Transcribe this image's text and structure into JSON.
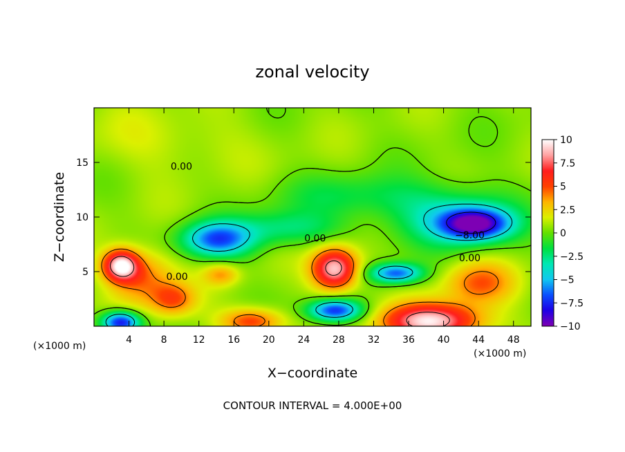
{
  "chart_data": {
    "type": "heatmap",
    "title": "zonal velocity",
    "xlabel": "X−coordinate",
    "ylabel": "Z−coordinate",
    "x_unit": "(×1000 m)",
    "z_unit": "(×1000 m)",
    "xlim": [
      0,
      50
    ],
    "ylim": [
      0,
      20
    ],
    "x_ticks": [
      4,
      8,
      12,
      16,
      20,
      24,
      28,
      32,
      36,
      40,
      44,
      48
    ],
    "x_tick_labels": [
      "4",
      "8",
      "12",
      "16",
      "20",
      "24",
      "28",
      "32",
      "36",
      "40",
      "44",
      "48"
    ],
    "y_ticks": [
      5,
      10,
      15
    ],
    "y_tick_labels": [
      "5",
      "10",
      "15"
    ],
    "colorbar": {
      "range": [
        -10,
        10
      ],
      "ticks": [
        10,
        7.5,
        5,
        2.5,
        0,
        -2.5,
        -5,
        -7.5,
        -10
      ],
      "tick_labels": [
        "10",
        "7.5",
        "5",
        "2.5",
        "0",
        "−2.5",
        "−5",
        "−7.5",
        "−10"
      ],
      "colors": [
        "#7d00b4",
        "#1e00e6",
        "#0a50ff",
        "#10c8f0",
        "#00e8b4",
        "#00e040",
        "#64e000",
        "#dcf000",
        "#ffb400",
        "#ff4000",
        "#ff1e1e",
        "#ffa0a0",
        "#ffffff"
      ]
    },
    "background_value": 0.5,
    "features": [
      {
        "x": 3,
        "z": 5.6,
        "sx": 2.0,
        "sz": 1.4,
        "value": 9
      },
      {
        "x": 5.5,
        "z": 4.5,
        "sx": 3.5,
        "sz": 2.5,
        "value": 4
      },
      {
        "x": 9,
        "z": 2.5,
        "sx": 2.5,
        "sz": 1.5,
        "value": 4
      },
      {
        "x": 3,
        "z": 0.4,
        "sx": 2.2,
        "sz": 1.0,
        "value": -9
      },
      {
        "x": 18,
        "z": 0.5,
        "sx": 3.5,
        "sz": 1.2,
        "value": 5
      },
      {
        "x": 14,
        "z": 8.0,
        "sx": 4.0,
        "sz": 1.6,
        "value": -7
      },
      {
        "x": 22,
        "z": 9.0,
        "sx": 6.0,
        "sz": 1.6,
        "value": -3
      },
      {
        "x": 14.5,
        "z": 4.8,
        "sx": 2.0,
        "sz": 1.0,
        "value": 3
      },
      {
        "x": 27.5,
        "z": 5.3,
        "sx": 2.6,
        "sz": 1.9,
        "value": 9
      },
      {
        "x": 27.5,
        "z": 1.5,
        "sx": 3.0,
        "sz": 1.0,
        "value": -8
      },
      {
        "x": 38.5,
        "z": 0.5,
        "sx": 5.5,
        "sz": 1.6,
        "value": 9
      },
      {
        "x": 43.5,
        "z": 9.4,
        "sx": 3.8,
        "sz": 1.4,
        "value": -9
      },
      {
        "x": 41,
        "z": 10.0,
        "sx": 7.0,
        "sz": 2.6,
        "value": -4
      },
      {
        "x": 34.5,
        "z": 4.9,
        "sx": 3.0,
        "sz": 0.9,
        "value": -7
      },
      {
        "x": 30,
        "z": 12.0,
        "sx": 9.0,
        "sz": 2.0,
        "value": -2
      },
      {
        "x": 44,
        "z": 4.0,
        "sx": 4.0,
        "sz": 2.0,
        "value": 4
      },
      {
        "x": 8,
        "z": 17.0,
        "sx": 10.0,
        "sz": 3.0,
        "value": 1
      }
    ],
    "contour_labels": [
      {
        "text": "0.00",
        "x": 10,
        "z": 14.6
      },
      {
        "text": "0.00",
        "x": 25.3,
        "z": 8.0
      },
      {
        "text": "0.00",
        "x": 9.5,
        "z": 4.5
      },
      {
        "text": "−8.00",
        "x": 43,
        "z": 8.3
      },
      {
        "text": "0.00",
        "x": 43,
        "z": 6.2
      }
    ],
    "contour_interval_text": "CONTOUR INTERVAL = 4.000E+00"
  }
}
